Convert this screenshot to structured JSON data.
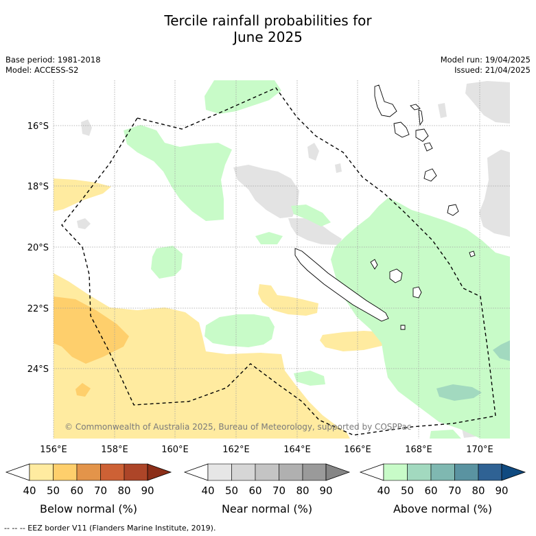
{
  "title_line1": "Tercile rainfall probabilities for",
  "title_line2": "June 2025",
  "meta_left": [
    "Base period: 1981-2018",
    "Model: ACCESS-S2"
  ],
  "meta_right": [
    "Model run: 19/04/2025",
    "Issued: 21/04/2025"
  ],
  "map": {
    "lon_ticks": [
      "156°E",
      "158°E",
      "160°E",
      "162°E",
      "164°E",
      "166°E",
      "168°E",
      "170°E"
    ],
    "lat_ticks": [
      "16°S",
      "18°S",
      "20°S",
      "22°S",
      "24°S"
    ],
    "copyright": "© Commonwealth of Australia 2025, Bureau of Meteorology, supported by COSPPac",
    "colors": {
      "below_50": "#ffeba0",
      "below_60": "#fecf6c",
      "near_50": "#e3e3e3",
      "above_50": "#c8fbc8",
      "above_60": "#a2d9bf"
    }
  },
  "colorbars": [
    {
      "name": "below",
      "label": "Below normal (%)",
      "ticks": [
        "40",
        "50",
        "60",
        "70",
        "80",
        "90"
      ],
      "colors": [
        "#ffffff",
        "#ffeba0",
        "#fecf6c",
        "#e3944a",
        "#cd6135",
        "#ad4528",
        "#8b2e18"
      ]
    },
    {
      "name": "near",
      "label": "Near normal (%)",
      "ticks": [
        "40",
        "50",
        "60",
        "70",
        "80",
        "90"
      ],
      "colors": [
        "#ffffff",
        "#e6e6e6",
        "#d6d6d6",
        "#c4c4c4",
        "#b0b0b0",
        "#9a9a9a",
        "#858585"
      ]
    },
    {
      "name": "above",
      "label": "Above normal (%)",
      "ticks": [
        "40",
        "50",
        "60",
        "70",
        "80",
        "90"
      ],
      "colors": [
        "#ffffff",
        "#c8fbc8",
        "#a2d9bf",
        "#7fb8b1",
        "#5a93a1",
        "#2f6294",
        "#104a80"
      ]
    }
  ],
  "footer": "--  --  -- EEZ border V11 (Flanders Marine Institute, 2019)."
}
